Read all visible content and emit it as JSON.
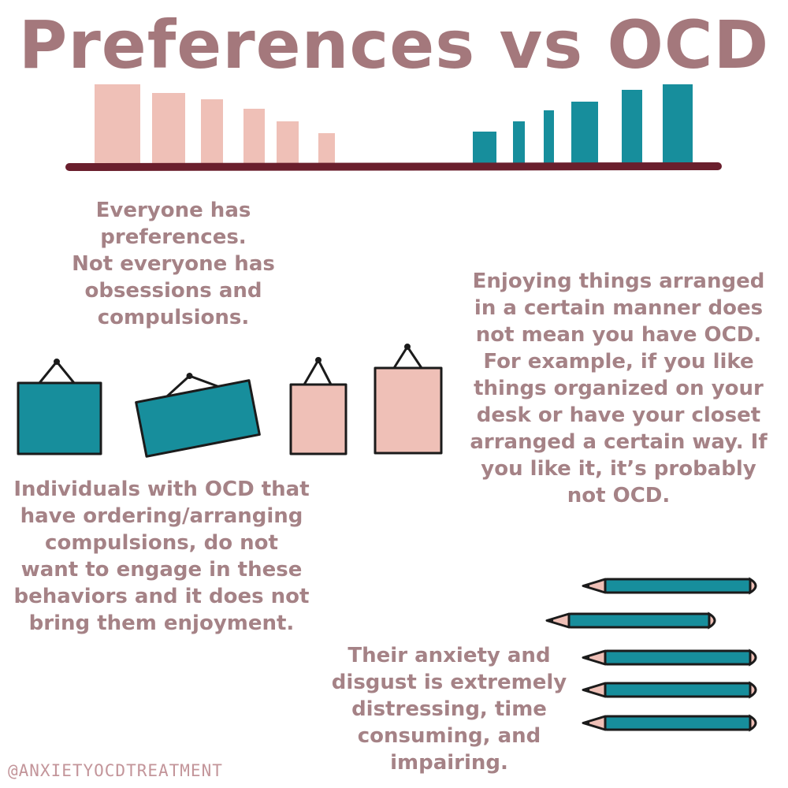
{
  "title": "Preferences vs OCD",
  "colors": {
    "title": "#a4787c",
    "body_text": "#a58286",
    "pink": "#efc0b7",
    "teal": "#178e9c",
    "shelf": "#6a1f2d",
    "outline": "#1b1b1b"
  },
  "blocks": {
    "preferences": "Everyone has\npreferences.\nNot everyone has\nobsessions and\ncompulsions.",
    "enjoying": "Enjoying things arranged\nin a certain manner does\nnot mean you have OCD.\nFor example, if you like\nthings organized on your\ndesk or have your closet\narranged a certain way. If\nyou like it, it’s probably\nnot OCD.",
    "individuals": "Individuals with OCD that\nhave ordering/arranging\ncompulsions, do not\nwant to engage in these\nbehaviors and it does not\nbring them enjoyment.",
    "anxiety": "Their anxiety and\ndisgust is extremely\ndistressing, time\nconsuming, and\nimpairing."
  },
  "handle": "@ANXIETYOCDTREATMENT",
  "icons": {
    "books": "pink-and-teal-books-on-shelf",
    "frames": "hanging-picture-frames",
    "pencils": "teal-pencils"
  }
}
